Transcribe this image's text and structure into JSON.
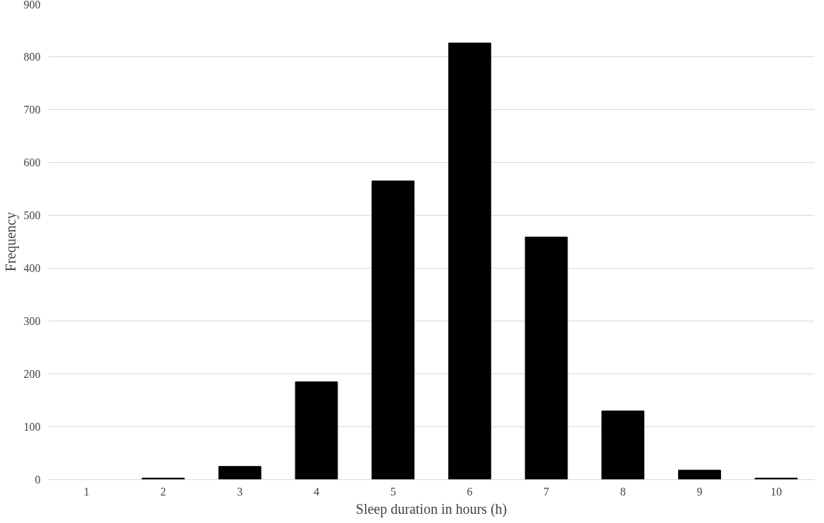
{
  "chart_data": {
    "type": "bar",
    "xlabel": "Sleep duration in hours (h)",
    "ylabel": "Frequency",
    "categories": [
      "1",
      "2",
      "3",
      "4",
      "5",
      "6",
      "7",
      "8",
      "9",
      "10"
    ],
    "values": [
      0,
      3,
      25,
      185,
      565,
      826,
      459,
      130,
      18,
      3
    ],
    "color": "#000000",
    "ylim": [
      0,
      900
    ],
    "yticks": [
      0,
      100,
      200,
      300,
      400,
      500,
      600,
      700,
      800,
      900
    ],
    "grid": "y"
  }
}
